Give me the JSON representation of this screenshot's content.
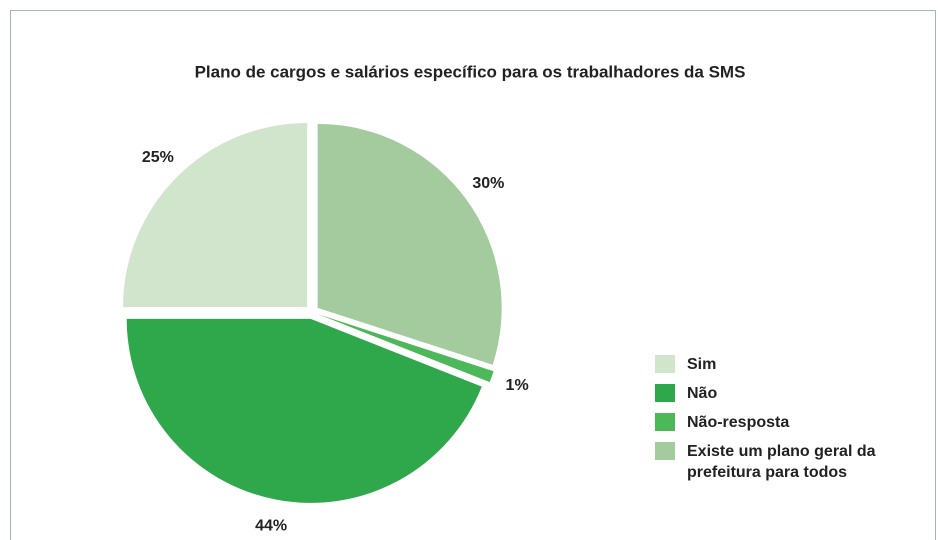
{
  "chart_data": {
    "type": "pie",
    "title": "Plano de cargos e salários específico para os trabalhadores da SMS",
    "categories": [
      "Sim",
      "Não",
      "Não-resposta",
      "Existe um plano geral da prefeitura para todos"
    ],
    "values": [
      25,
      44,
      1,
      30
    ],
    "value_labels": [
      "25%",
      "44%",
      "1%",
      "30%"
    ],
    "colors": [
      "#d0e5cc",
      "#2ea84a",
      "#4cb85a",
      "#a3cb9e"
    ],
    "legend": "right"
  }
}
